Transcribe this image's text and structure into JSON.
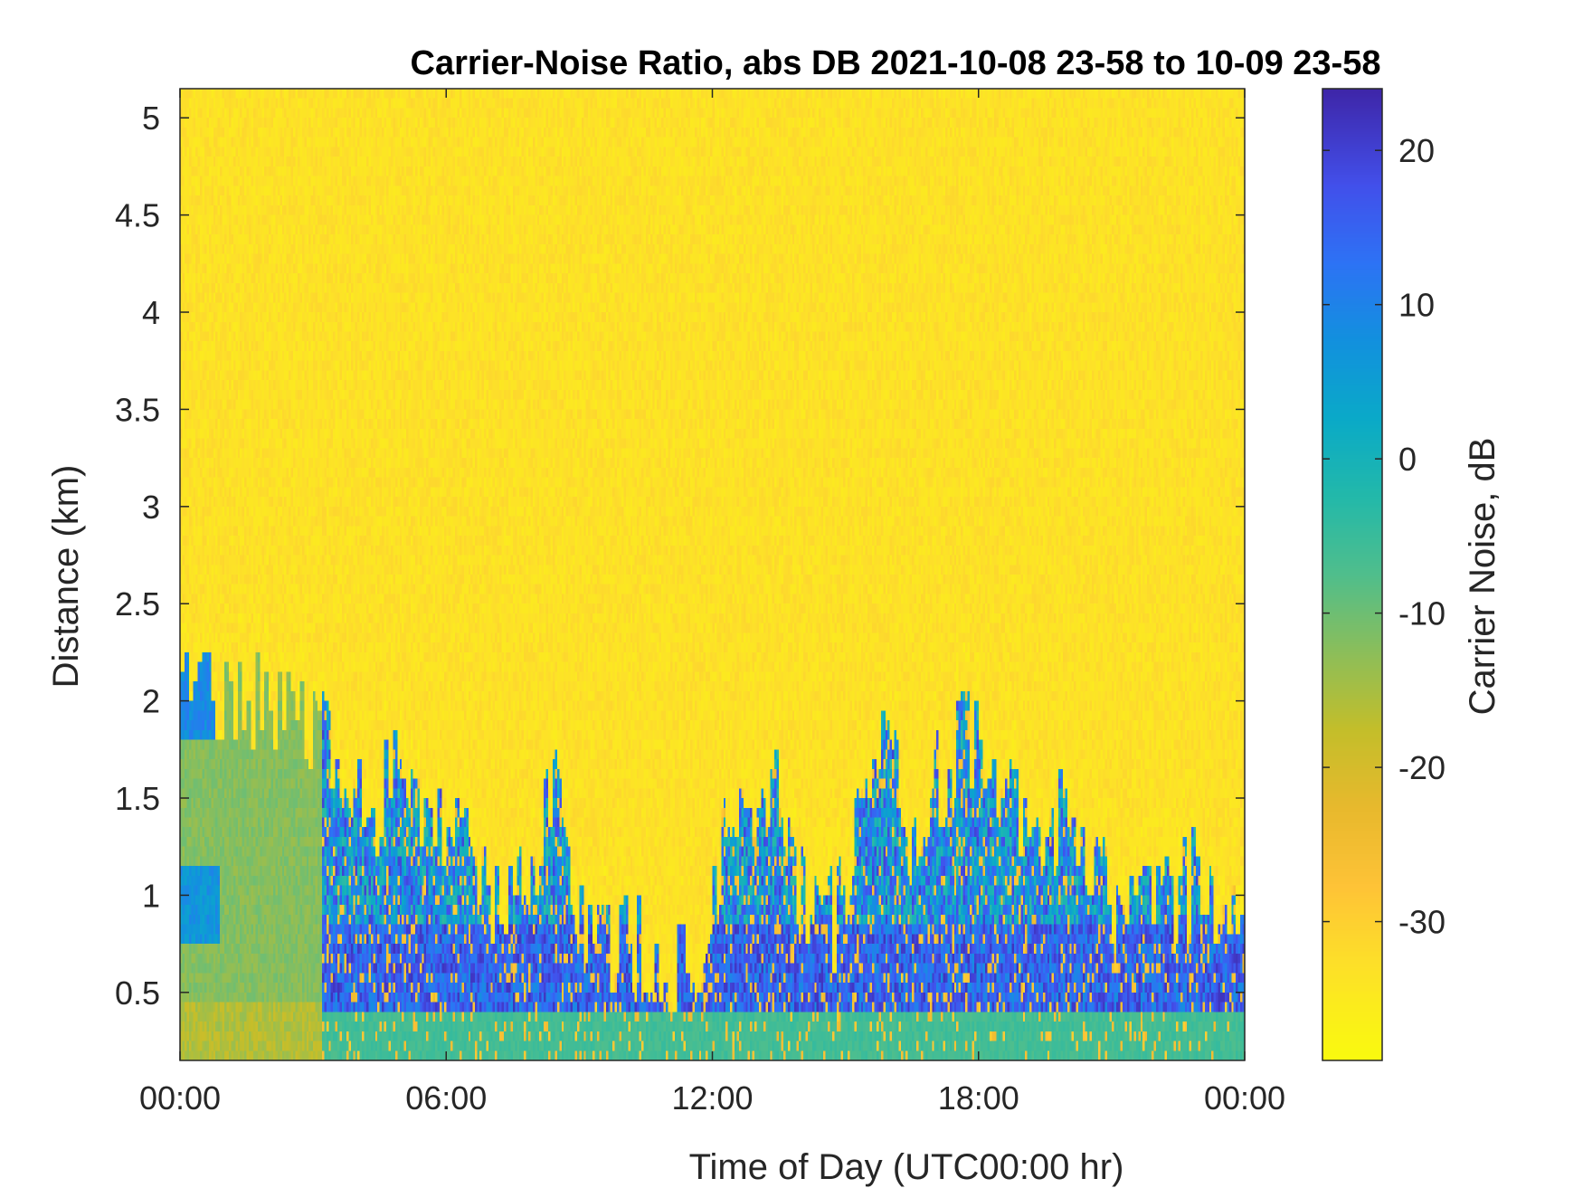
{
  "chart_data": {
    "type": "heatmap",
    "title": "Carrier-Noise Ratio, abs DB 2021-10-08 23-58 to 10-09 23-58",
    "xlabel": "Time of Day (UTC00:00 hr)",
    "ylabel": "Distance (km)",
    "colorbar_label": "Carrier Noise, dB",
    "x_range_hours": [
      0,
      24
    ],
    "x_ticks": [
      {
        "value": 0,
        "label": "00:00"
      },
      {
        "value": 6,
        "label": "06:00"
      },
      {
        "value": 12,
        "label": "12:00"
      },
      {
        "value": 18,
        "label": "18:00"
      },
      {
        "value": 24,
        "label": "00:00"
      }
    ],
    "ylim": [
      0.15,
      5.15
    ],
    "y_ticks": [
      {
        "value": 0.5,
        "label": "0.5"
      },
      {
        "value": 1,
        "label": "1"
      },
      {
        "value": 1.5,
        "label": "1.5"
      },
      {
        "value": 2,
        "label": "2"
      },
      {
        "value": 2.5,
        "label": "2.5"
      },
      {
        "value": 3,
        "label": "3"
      },
      {
        "value": 3.5,
        "label": "3.5"
      },
      {
        "value": 4,
        "label": "4"
      },
      {
        "value": 4.5,
        "label": "4.5"
      },
      {
        "value": 5,
        "label": "5"
      }
    ],
    "clim": [
      -39,
      24
    ],
    "colorbar_ticks": [
      {
        "value": 20,
        "label": "20"
      },
      {
        "value": 10,
        "label": "10"
      },
      {
        "value": 0,
        "label": "0"
      },
      {
        "value": -10,
        "label": "-10"
      },
      {
        "value": -20,
        "label": "-20"
      },
      {
        "value": -30,
        "label": "-30"
      }
    ],
    "colormap": "parula (reversed)",
    "background_level_db": -33,
    "signal_top_km": [
      [
        0.0,
        2.05
      ],
      [
        0.5,
        2.05
      ],
      [
        1.0,
        2.0
      ],
      [
        2.0,
        2.0
      ],
      [
        3.0,
        1.95
      ],
      [
        3.5,
        1.8
      ],
      [
        4.0,
        1.55
      ],
      [
        4.5,
        1.5
      ],
      [
        5.0,
        1.6
      ],
      [
        5.5,
        1.4
      ],
      [
        6.0,
        1.3
      ],
      [
        6.5,
        1.15
      ],
      [
        7.0,
        0.95
      ],
      [
        7.5,
        1.0
      ],
      [
        8.0,
        1.2
      ],
      [
        8.5,
        1.5
      ],
      [
        9.0,
        1.0
      ],
      [
        9.5,
        0.85
      ],
      [
        10.0,
        0.75
      ],
      [
        10.5,
        0.7
      ],
      [
        11.0,
        0.6
      ],
      [
        11.5,
        0.55
      ],
      [
        12.0,
        1.0
      ],
      [
        12.5,
        1.5
      ],
      [
        13.0,
        1.55
      ],
      [
        13.5,
        1.5
      ],
      [
        14.0,
        1.0
      ],
      [
        14.5,
        0.75
      ],
      [
        15.0,
        1.0
      ],
      [
        15.5,
        1.65
      ],
      [
        16.0,
        1.7
      ],
      [
        16.5,
        1.2
      ],
      [
        17.0,
        1.55
      ],
      [
        17.5,
        1.75
      ],
      [
        18.0,
        1.75
      ],
      [
        18.5,
        1.6
      ],
      [
        19.0,
        1.4
      ],
      [
        19.5,
        1.2
      ],
      [
        20.0,
        1.5
      ],
      [
        20.5,
        1.2
      ],
      [
        21.0,
        1.0
      ],
      [
        21.5,
        0.95
      ],
      [
        22.0,
        0.9
      ],
      [
        22.5,
        1.0
      ],
      [
        23.0,
        1.1
      ],
      [
        23.5,
        1.0
      ],
      [
        24.0,
        1.0
      ]
    ]
  }
}
